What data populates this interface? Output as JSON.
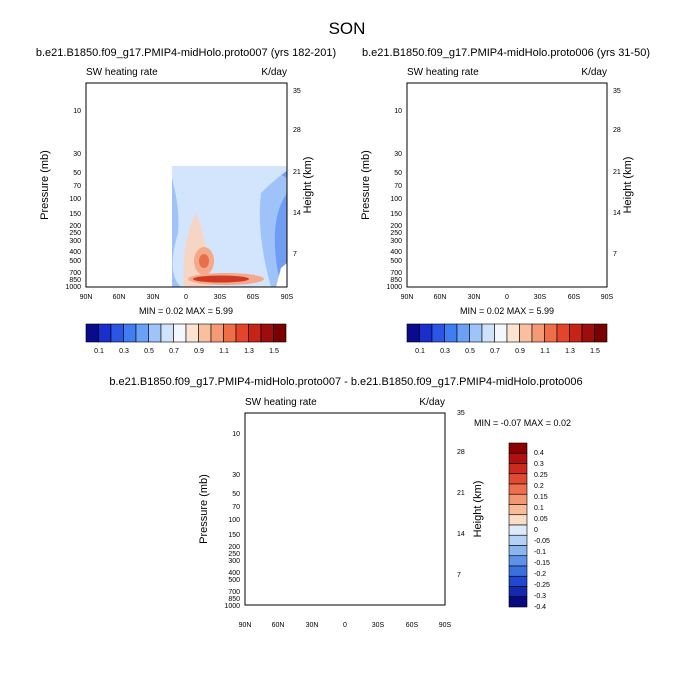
{
  "page_title": "SON",
  "chart_data": [
    {
      "type": "heatmap",
      "title": "b.e21.B1850.f09_g17.PMIP4-midHolo.proto007 (yrs 182-201)",
      "left_string": "SW heating rate",
      "right_string": "K/day",
      "xlabel": "",
      "ylabel": "Pressure (mb)",
      "y2label": "Height (km)",
      "x_ticks": [
        "90N",
        "60N",
        "30N",
        "0",
        "30S",
        "60S",
        "90S"
      ],
      "y_ticks": [
        "10",
        "30",
        "50",
        "70",
        "100",
        "150",
        "200",
        "250",
        "300",
        "400",
        "500",
        "700",
        "850",
        "1000"
      ],
      "y2_ticks": [
        "35",
        "28",
        "21",
        "14",
        "7"
      ],
      "stats": "MIN =  0.02   MAX =   5.99",
      "colorbar_labels": [
        "0.1",
        "0.3",
        "0.5",
        "0.7",
        "0.9",
        "1.1",
        "1.3",
        "1.5"
      ],
      "colorbar_colors": [
        "#0a0a8c",
        "#1a2ecc",
        "#2a55e6",
        "#3f7ef0",
        "#6aa0f5",
        "#9ec4fa",
        "#cfe3fc",
        "#f4f8fd",
        "#fde3d2",
        "#f9c0a0",
        "#f59a74",
        "#ee6e48",
        "#e4442a",
        "#c72418",
        "#9e0d0d",
        "#7a0000"
      ],
      "colorbar_orientation": "horizontal",
      "grid": false
    },
    {
      "type": "heatmap",
      "title": "b.e21.B1850.f09_g17.PMIP4-midHolo.proto006 (yrs 31-50)",
      "left_string": "SW heating rate",
      "right_string": "K/day",
      "xlabel": "",
      "ylabel": "Pressure (mb)",
      "y2label": "Height (km)",
      "x_ticks": [
        "90N",
        "60N",
        "30N",
        "0",
        "30S",
        "60S",
        "90S"
      ],
      "y_ticks": [
        "10",
        "30",
        "50",
        "70",
        "100",
        "150",
        "200",
        "250",
        "300",
        "400",
        "500",
        "700",
        "850",
        "1000"
      ],
      "y2_ticks": [
        "35",
        "28",
        "21",
        "14",
        "7"
      ],
      "stats": "MIN =  0.02   MAX =   5.99",
      "colorbar_labels": [
        "0.1",
        "0.3",
        "0.5",
        "0.7",
        "0.9",
        "1.1",
        "1.3",
        "1.5"
      ],
      "colorbar_colors": [
        "#0a0a8c",
        "#1a2ecc",
        "#2a55e6",
        "#3f7ef0",
        "#6aa0f5",
        "#9ec4fa",
        "#cfe3fc",
        "#f4f8fd",
        "#fde3d2",
        "#f9c0a0",
        "#f59a74",
        "#ee6e48",
        "#e4442a",
        "#c72418",
        "#9e0d0d",
        "#7a0000"
      ],
      "colorbar_orientation": "horizontal",
      "grid": false
    },
    {
      "type": "heatmap",
      "title": "b.e21.B1850.f09_g17.PMIP4-midHolo.proto007 - b.e21.B1850.f09_g17.PMIP4-midHolo.proto006",
      "left_string": "SW heating rate",
      "right_string": "K/day",
      "xlabel": "",
      "ylabel": "Pressure (mb)",
      "y2label": "Height (km)",
      "x_ticks": [
        "90N",
        "60N",
        "30N",
        "0",
        "30S",
        "60S",
        "90S"
      ],
      "y_ticks": [
        "10",
        "30",
        "50",
        "70",
        "100",
        "150",
        "200",
        "250",
        "300",
        "400",
        "500",
        "700",
        "850",
        "1000"
      ],
      "y2_ticks": [
        "35",
        "28",
        "21",
        "14",
        "7"
      ],
      "stats": "MIN = -0.07   MAX =   0.02",
      "colorbar_labels": [
        "0.4",
        "0.3",
        "0.25",
        "0.2",
        "0.15",
        "0.1",
        "0.05",
        "0",
        "-0.05",
        "-0.1",
        "-0.15",
        "-0.2",
        "-0.25",
        "-0.3",
        "-0.4"
      ],
      "colorbar_colors": [
        "#8b0000",
        "#b01010",
        "#cc2a1a",
        "#e04a30",
        "#ee6e4e",
        "#f49670",
        "#f8bb98",
        "#fbdcc6",
        "#dceaf9",
        "#b5d2f5",
        "#8ab6ef",
        "#5e92e8",
        "#3a6fe0",
        "#1f47cf",
        "#1528b0",
        "#0a0a80"
      ],
      "colorbar_orientation": "vertical",
      "grid": false
    }
  ]
}
